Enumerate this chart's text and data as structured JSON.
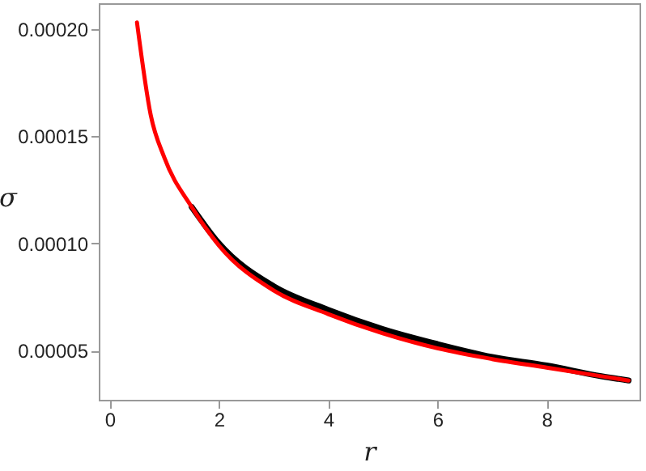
{
  "chart_data": {
    "type": "line",
    "xlabel": "r",
    "ylabel": "σ",
    "xlim": [
      -0.2,
      9.7
    ],
    "ylim": [
      2.7e-05,
      0.000212
    ],
    "xticks": [
      0,
      2,
      4,
      6,
      8
    ],
    "yticks": [
      {
        "value": 5e-05,
        "label": "0.00005"
      },
      {
        "value": 0.0001,
        "label": "0.00010"
      },
      {
        "value": 0.00015,
        "label": "0.00015"
      },
      {
        "value": 0.0002,
        "label": "0.00020"
      }
    ],
    "series": [
      {
        "color": "#000000",
        "x": [
          1.5,
          2,
          3,
          4,
          5,
          6,
          7,
          8,
          9,
          9.5
        ],
        "values": [
          0.000117,
          0.0001,
          8e-05,
          6.9e-05,
          6e-05,
          5.3e-05,
          4.7e-05,
          4.3e-05,
          3.8e-05,
          3.6e-05
        ]
      },
      {
        "color": "#ff0000",
        "x": [
          0.5,
          0.75,
          1,
          1.5,
          2,
          3,
          4,
          5,
          6,
          7,
          8,
          9,
          9.5
        ],
        "values": [
          0.000203,
          0.00016,
          0.00014,
          0.000117,
          9.9e-05,
          7.8e-05,
          6.7e-05,
          5.8e-05,
          5.1e-05,
          4.6e-05,
          4.2e-05,
          3.8e-05,
          3.6e-05
        ]
      }
    ]
  }
}
